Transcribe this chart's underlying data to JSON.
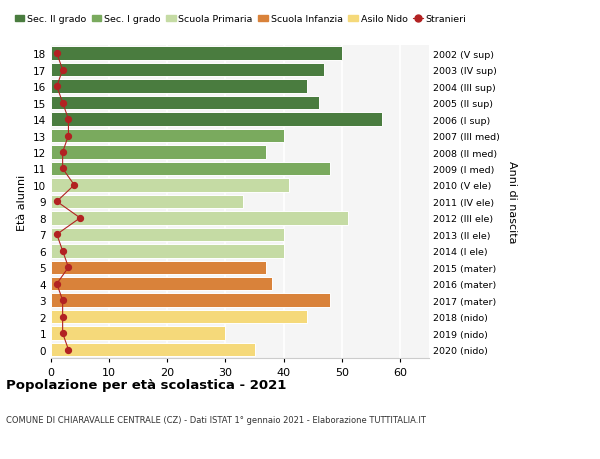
{
  "ages": [
    18,
    17,
    16,
    15,
    14,
    13,
    12,
    11,
    10,
    9,
    8,
    7,
    6,
    5,
    4,
    3,
    2,
    1,
    0
  ],
  "right_labels": [
    "2002 (V sup)",
    "2003 (IV sup)",
    "2004 (III sup)",
    "2005 (II sup)",
    "2006 (I sup)",
    "2007 (III med)",
    "2008 (II med)",
    "2009 (I med)",
    "2010 (V ele)",
    "2011 (IV ele)",
    "2012 (III ele)",
    "2013 (II ele)",
    "2014 (I ele)",
    "2015 (mater)",
    "2016 (mater)",
    "2017 (mater)",
    "2018 (nido)",
    "2019 (nido)",
    "2020 (nido)"
  ],
  "bar_values": [
    50,
    47,
    44,
    46,
    57,
    40,
    37,
    48,
    41,
    33,
    51,
    40,
    40,
    37,
    38,
    48,
    44,
    30,
    35
  ],
  "stranieri_values": [
    1,
    2,
    1,
    2,
    3,
    3,
    2,
    2,
    4,
    1,
    5,
    1,
    2,
    3,
    1,
    2,
    2,
    2,
    3
  ],
  "bar_colors": [
    "#4a7c3f",
    "#4a7c3f",
    "#4a7c3f",
    "#4a7c3f",
    "#4a7c3f",
    "#7aaa5e",
    "#7aaa5e",
    "#7aaa5e",
    "#c5dba4",
    "#c5dba4",
    "#c5dba4",
    "#c5dba4",
    "#c5dba4",
    "#d9823a",
    "#d9823a",
    "#d9823a",
    "#f5d97a",
    "#f5d97a",
    "#f5d97a"
  ],
  "legend_labels": [
    "Sec. II grado",
    "Sec. I grado",
    "Scuola Primaria",
    "Scuola Infanzia",
    "Asilo Nido",
    "Stranieri"
  ],
  "legend_colors": [
    "#4a7c3f",
    "#7aaa5e",
    "#c5dba4",
    "#d9823a",
    "#f5d97a",
    "#b22222"
  ],
  "ylabel_left": "Età alunni",
  "ylabel_right": "Anni di nascita",
  "title": "Popolazione per età scolastica - 2021",
  "subtitle": "COMUNE DI CHIARAVALLE CENTRALE (CZ) - Dati ISTAT 1° gennaio 2021 - Elaborazione TUTTITALIA.IT",
  "xlim": [
    0,
    65
  ],
  "xticks": [
    0,
    10,
    20,
    30,
    40,
    50,
    60
  ],
  "background_color": "#ffffff",
  "plot_bg_color": "#f5f5f5",
  "grid_color": "#ffffff",
  "stranieri_color": "#b22222",
  "stranieri_line_color": "#b22222"
}
